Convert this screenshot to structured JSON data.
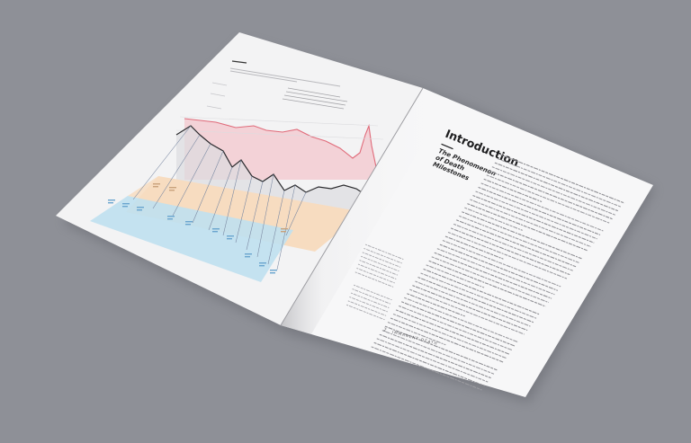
{
  "book": {
    "section_title": "Introduction",
    "subtitle_lines": [
      "The Phenomenon",
      "of Death",
      "Milestones"
    ],
    "footer_number": "2",
    "footer_text": "IMMANENT DEATH"
  },
  "colors": {
    "background": "#8e9097",
    "page_left": "#f3f3f4",
    "page_right": "#f7f7f8",
    "band_orange": "#f7dcc0",
    "band_blue": "#bfe0ef",
    "line_red": "#e06b7a",
    "area_red": "#f3c7cd",
    "line_dark": "#2b2b2e",
    "area_grey": "#dcdcdf",
    "leader": "#7c8aa3",
    "label_blue": "#6aa5cf"
  }
}
